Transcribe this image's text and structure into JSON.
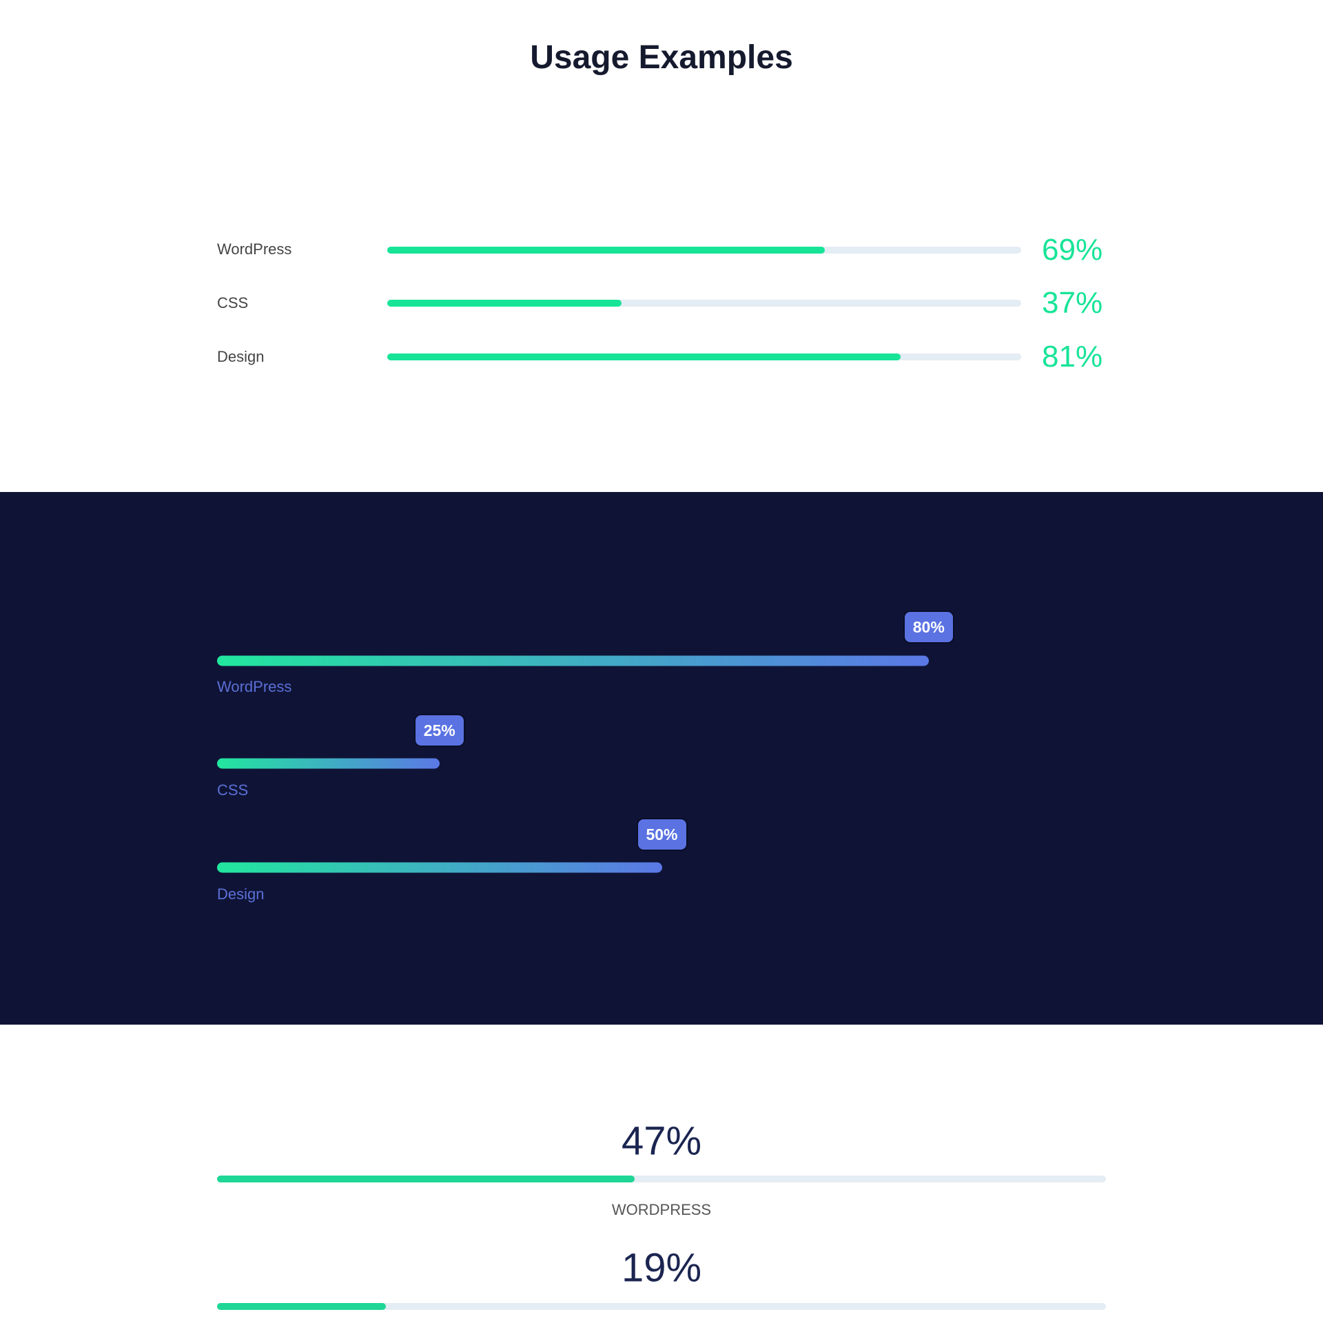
{
  "title": "Usage Examples",
  "colors": {
    "accent_green": "#17e497",
    "dark_bg": "#0f1437",
    "badge_blue": "#5a72e2",
    "track": "#e4ecf4"
  },
  "section_light": {
    "items": [
      {
        "label": "WordPress",
        "percent": 69,
        "percent_text": "69%"
      },
      {
        "label": "CSS",
        "percent": 37,
        "percent_text": "37%"
      },
      {
        "label": "Design",
        "percent": 81,
        "percent_text": "81%"
      }
    ]
  },
  "section_dark": {
    "items": [
      {
        "label": "WordPress",
        "percent": 80,
        "percent_text": "80%"
      },
      {
        "label": "CSS",
        "percent": 25,
        "percent_text": "25%"
      },
      {
        "label": "Design",
        "percent": 50,
        "percent_text": "50%"
      }
    ]
  },
  "section_centered": {
    "items": [
      {
        "label": "WORDPRESS",
        "percent": 47,
        "percent_text": "47%"
      },
      {
        "percent": 19,
        "percent_text": "19%"
      }
    ]
  }
}
